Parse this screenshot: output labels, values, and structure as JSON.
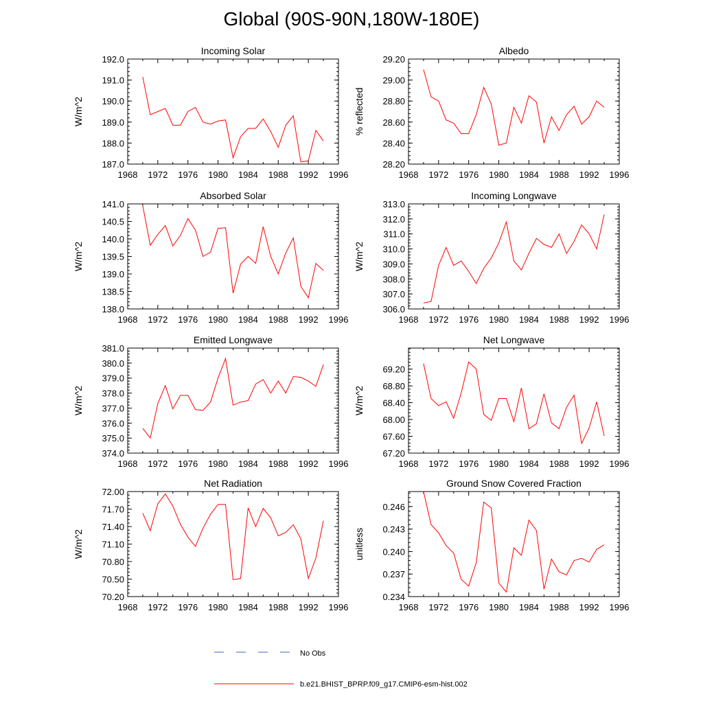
{
  "figure_title": "Global (90S-90N,180W-180E)",
  "colors": {
    "model_line": "#ff0000",
    "obs_line": "#4a5acd",
    "axis": "#000000"
  },
  "years": [
    1970,
    1971,
    1972,
    1973,
    1974,
    1975,
    1976,
    1977,
    1978,
    1979,
    1980,
    1981,
    1982,
    1983,
    1984,
    1985,
    1986,
    1987,
    1988,
    1989,
    1990,
    1991,
    1992,
    1993,
    1994
  ],
  "chart_data": [
    {
      "type": "line",
      "title": "Incoming Solar",
      "xlabel": "",
      "ylabel": "W/m^2",
      "xlim": [
        1968,
        1996
      ],
      "xticks": [
        "1968",
        "1972",
        "1976",
        "1980",
        "1984",
        "1988",
        "1992",
        "1996"
      ],
      "ylim": [
        187.0,
        192.0
      ],
      "yticks": [
        "187.0",
        "188.0",
        "189.0",
        "190.0",
        "191.0",
        "192.0"
      ],
      "series": [
        {
          "name": "b.e21.BHIST_BPRP.f09_g17.CMIP6-esm-hist.002",
          "values": [
            191.15,
            189.35,
            189.5,
            189.65,
            188.85,
            188.85,
            189.5,
            189.7,
            189.0,
            188.9,
            189.05,
            189.1,
            187.3,
            188.3,
            188.7,
            188.7,
            189.15,
            188.55,
            187.8,
            188.85,
            189.3,
            187.1,
            187.15,
            188.6,
            188.1
          ]
        }
      ]
    },
    {
      "type": "line",
      "title": "Albedo",
      "xlabel": "",
      "ylabel": "% reflected",
      "xlim": [
        1968,
        1996
      ],
      "xticks": [
        "1968",
        "1972",
        "1976",
        "1980",
        "1984",
        "1988",
        "1992",
        "1996"
      ],
      "ylim": [
        28.2,
        29.2
      ],
      "yticks": [
        "28.20",
        "28.40",
        "28.60",
        "28.80",
        "29.00",
        "29.20"
      ],
      "series": [
        {
          "name": "b.e21.BHIST_BPRP.f09_g17.CMIP6-esm-hist.002",
          "values": [
            29.1,
            28.84,
            28.8,
            28.62,
            28.59,
            28.49,
            28.49,
            28.67,
            28.93,
            28.77,
            28.38,
            28.4,
            28.74,
            28.59,
            28.85,
            28.79,
            28.4,
            28.65,
            28.52,
            28.67,
            28.75,
            28.58,
            28.65,
            28.8,
            28.74
          ]
        }
      ]
    },
    {
      "type": "line",
      "title": "Absorbed Solar",
      "xlabel": "",
      "ylabel": "W/m^2",
      "xlim": [
        1968,
        1996
      ],
      "xticks": [
        "1968",
        "1972",
        "1976",
        "1980",
        "1984",
        "1988",
        "1992",
        "1996"
      ],
      "ylim": [
        138.0,
        141.0
      ],
      "yticks": [
        "138.0",
        "138.5",
        "139.0",
        "139.5",
        "140.0",
        "140.5",
        "141.0"
      ],
      "series": [
        {
          "name": "b.e21.BHIST_BPRP.f09_g17.CMIP6-esm-hist.002",
          "values": [
            140.95,
            139.82,
            140.13,
            140.38,
            139.8,
            140.1,
            140.58,
            140.25,
            139.5,
            139.62,
            140.3,
            140.32,
            138.45,
            139.28,
            139.5,
            139.3,
            140.35,
            139.5,
            139.0,
            139.6,
            140.03,
            138.65,
            138.32,
            139.3,
            139.1
          ]
        }
      ]
    },
    {
      "type": "line",
      "title": "Incoming Longwave",
      "xlabel": "",
      "ylabel": "W/m^2",
      "xlim": [
        1968,
        1996
      ],
      "xticks": [
        "1968",
        "1972",
        "1976",
        "1980",
        "1984",
        "1988",
        "1992",
        "1996"
      ],
      "ylim": [
        306.0,
        313.0
      ],
      "yticks": [
        "306.0",
        "307.0",
        "308.0",
        "309.0",
        "310.0",
        "311.0",
        "312.0",
        "313.0"
      ],
      "series": [
        {
          "name": "b.e21.BHIST_BPRP.f09_g17.CMIP6-esm-hist.002",
          "values": [
            306.4,
            306.5,
            308.9,
            310.1,
            308.9,
            309.2,
            308.5,
            307.7,
            308.7,
            309.4,
            310.4,
            311.8,
            309.2,
            308.6,
            309.7,
            310.7,
            310.3,
            310.1,
            311.0,
            309.7,
            310.5,
            311.6,
            311.0,
            310.0,
            312.3
          ]
        }
      ]
    },
    {
      "type": "line",
      "title": "Emitted Longwave",
      "xlabel": "",
      "ylabel": "W/m^2",
      "xlim": [
        1968,
        1996
      ],
      "xticks": [
        "1968",
        "1972",
        "1976",
        "1980",
        "1984",
        "1988",
        "1992",
        "1996"
      ],
      "ylim": [
        374.0,
        381.0
      ],
      "yticks": [
        "374.0",
        "375.0",
        "376.0",
        "377.0",
        "378.0",
        "379.0",
        "380.0",
        "381.0"
      ],
      "series": [
        {
          "name": "b.e21.BHIST_BPRP.f09_g17.CMIP6-esm-hist.002",
          "values": [
            375.65,
            375.0,
            377.3,
            378.5,
            376.95,
            377.85,
            377.85,
            376.9,
            376.85,
            377.4,
            379.0,
            380.3,
            377.2,
            377.4,
            377.5,
            378.6,
            378.9,
            378.0,
            378.8,
            378.0,
            379.1,
            379.05,
            378.8,
            378.45,
            379.9
          ]
        }
      ]
    },
    {
      "type": "line",
      "title": "Net Longwave",
      "xlabel": "",
      "ylabel": "W/m^2",
      "xlim": [
        1968,
        1996
      ],
      "xticks": [
        "1968",
        "1972",
        "1976",
        "1980",
        "1984",
        "1988",
        "1992",
        "1996"
      ],
      "ylim": [
        67.2,
        69.7
      ],
      "yticks": [
        "67.20",
        "67.60",
        "68.00",
        "68.40",
        "68.80",
        "69.20"
      ],
      "series": [
        {
          "name": "b.e21.BHIST_BPRP.f09_g17.CMIP6-esm-hist.002",
          "values": [
            69.33,
            68.5,
            68.33,
            68.42,
            68.03,
            68.63,
            69.37,
            69.2,
            68.12,
            67.98,
            68.5,
            68.5,
            67.95,
            68.75,
            67.78,
            67.9,
            68.61,
            67.92,
            67.78,
            68.29,
            68.58,
            67.43,
            67.8,
            68.42,
            67.61
          ]
        }
      ]
    },
    {
      "type": "line",
      "title": "Net Radiation",
      "xlabel": "",
      "ylabel": "W/m^2",
      "xlim": [
        1968,
        1996
      ],
      "xticks": [
        "1968",
        "1972",
        "1976",
        "1980",
        "1984",
        "1988",
        "1992",
        "1996"
      ],
      "ylim": [
        70.2,
        72.0
      ],
      "yticks": [
        "70.20",
        "70.50",
        "70.80",
        "71.10",
        "71.40",
        "71.70",
        "72.00"
      ],
      "series": [
        {
          "name": "b.e21.BHIST_BPRP.f09_g17.CMIP6-esm-hist.002",
          "values": [
            71.63,
            71.33,
            71.79,
            71.96,
            71.75,
            71.44,
            71.22,
            71.06,
            71.37,
            71.61,
            71.78,
            71.78,
            70.49,
            70.51,
            71.72,
            71.4,
            71.71,
            71.55,
            71.24,
            71.3,
            71.43,
            71.19,
            70.51,
            70.86,
            71.5
          ]
        }
      ]
    },
    {
      "type": "line",
      "title": "Ground Snow Covered Fraction",
      "xlabel": "",
      "ylabel": "unitless",
      "xlim": [
        1968,
        1996
      ],
      "xticks": [
        "1968",
        "1972",
        "1976",
        "1980",
        "1984",
        "1988",
        "1992",
        "1996"
      ],
      "ylim": [
        0.234,
        0.248
      ],
      "yticks": [
        "0.234",
        "0.237",
        "0.240",
        "0.243",
        "0.246"
      ],
      "series": [
        {
          "name": "b.e21.BHIST_BPRP.f09_g17.CMIP6-esm-hist.002",
          "values": [
            0.248,
            0.2436,
            0.2425,
            0.2408,
            0.2398,
            0.2363,
            0.2354,
            0.2385,
            0.2466,
            0.2458,
            0.2358,
            0.2346,
            0.2405,
            0.2395,
            0.2442,
            0.2428,
            0.235,
            0.239,
            0.2373,
            0.2369,
            0.2388,
            0.2391,
            0.2386,
            0.2403,
            0.2409
          ]
        }
      ]
    }
  ],
  "legend": {
    "position": "bottom-center",
    "items": [
      {
        "label": "No Obs",
        "style": "dashed",
        "color": "#4a5acd"
      },
      {
        "label": "b.e21.BHIST_BPRP.f09_g17.CMIP6-esm-hist.002",
        "style": "solid",
        "color": "#ff0000"
      }
    ]
  }
}
